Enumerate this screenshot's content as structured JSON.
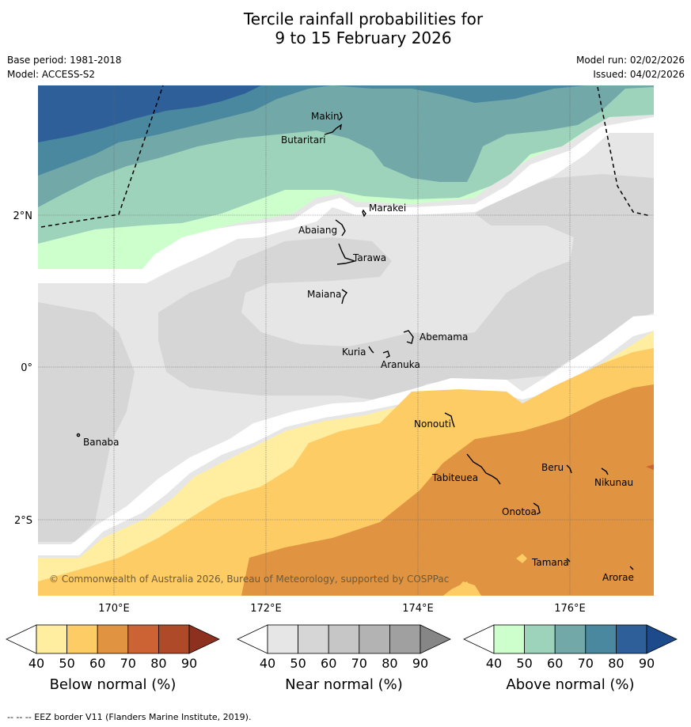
{
  "title": {
    "line1": "Tercile rainfall probabilities for",
    "line2": "9 to 15 February 2026"
  },
  "meta": {
    "base_period": "Base period: 1981-2018",
    "model": "Model: ACCESS-S2",
    "model_run": "Model run: 02/02/2026",
    "issued": "Issued: 04/02/2026"
  },
  "map": {
    "lat_labels": [
      "2°N",
      "0°",
      "2°S"
    ],
    "lon_labels": [
      "170°E",
      "172°E",
      "174°E",
      "176°E"
    ],
    "places": [
      "Makin",
      "Butaritari",
      "Marakei",
      "Abaiang",
      "Tarawa",
      "Maiana",
      "Abemama",
      "Kuria",
      "Aranuka",
      "Nonouti",
      "Banaba",
      "Tabiteuea",
      "Beru",
      "Nikunau",
      "Onotoa",
      "Tamana",
      "Arorae"
    ],
    "copyright": "© Commonwealth of Australia 2026, Bureau of Meteorology, supported by COSPPac"
  },
  "colorbars": [
    {
      "title": "Below normal (%)",
      "ticks": [
        "40",
        "50",
        "60",
        "70",
        "80",
        "90"
      ],
      "colors": [
        "#ffffff",
        "#ffeda0",
        "#fecc65",
        "#e09341",
        "#cc6334",
        "#ae4a28",
        "#8e3020"
      ]
    },
    {
      "title": "Near normal (%)",
      "ticks": [
        "40",
        "50",
        "60",
        "70",
        "80",
        "90"
      ],
      "colors": [
        "#ffffff",
        "#e6e6e6",
        "#d6d6d6",
        "#c6c6c6",
        "#b3b3b3",
        "#a0a0a0",
        "#868686"
      ]
    },
    {
      "title": "Above normal (%)",
      "ticks": [
        "40",
        "50",
        "60",
        "70",
        "80",
        "90"
      ],
      "colors": [
        "#ffffff",
        "#ccffcc",
        "#9ed3bb",
        "#72a8a8",
        "#4a88a0",
        "#2e5f98",
        "#1c4a8a"
      ]
    }
  ],
  "eez_note": "--  --  -- EEZ border V11 (Flanders Marine Institute, 2019)."
}
